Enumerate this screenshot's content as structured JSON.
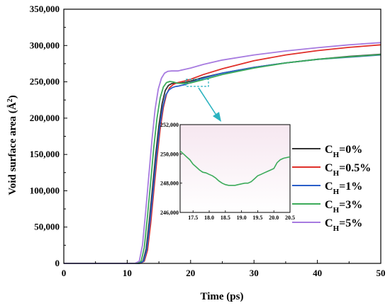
{
  "chart_data": {
    "type": "line",
    "xlabel": "Time (ps)",
    "ylabel": "Void surface area (Å",
    "ylabel_sup": "2",
    "ylabel_close": ")",
    "xlim": [
      0,
      50
    ],
    "ylim": [
      0,
      350000
    ],
    "x_ticks": [
      0,
      10,
      20,
      30,
      40,
      50
    ],
    "y_ticks": [
      0,
      50000,
      100000,
      150000,
      200000,
      250000,
      300000,
      350000
    ],
    "x_tick_labels": [
      "0",
      "10",
      "20",
      "30",
      "40",
      "50"
    ],
    "y_tick_labels": [
      "0",
      "50,000",
      "100,000",
      "150,000",
      "200,000",
      "250,000",
      "300,000",
      "350,000"
    ],
    "legend_position": "center-right",
    "series": [
      {
        "legend_main": "C",
        "legend_sub": "H",
        "legend_rest": "=0%",
        "color": "#333333",
        "x": [
          0,
          11.8,
          12.5,
          13,
          13.5,
          14,
          14.5,
          15,
          15.5,
          16,
          16.5,
          17,
          17.5,
          18,
          19,
          20,
          22,
          25,
          30,
          35,
          40,
          45,
          50
        ],
        "y": [
          0,
          0,
          3000,
          20000,
          60000,
          105000,
          150000,
          190000,
          220000,
          238000,
          245000,
          247500,
          248500,
          248000,
          249000,
          251000,
          256000,
          262000,
          270000,
          276000,
          281000,
          285000,
          288000
        ]
      },
      {
        "legend_main": "C",
        "legend_sub": "H",
        "legend_rest": "=0.5%",
        "color": "#e0302a",
        "x": [
          0,
          12.0,
          12.7,
          13.2,
          13.7,
          14.2,
          14.7,
          15.2,
          15.7,
          16.2,
          16.7,
          17.2,
          17.7,
          18,
          19,
          20,
          22,
          25,
          30,
          35,
          40,
          45,
          50
        ],
        "y": [
          0,
          0,
          3000,
          18000,
          55000,
          100000,
          145000,
          185000,
          215000,
          233000,
          242000,
          246000,
          248000,
          249000,
          251000,
          253500,
          260000,
          268000,
          279000,
          287000,
          293000,
          297500,
          301000
        ]
      },
      {
        "legend_main": "C",
        "legend_sub": "H",
        "legend_rest": "=1%",
        "color": "#2a5fc9",
        "x": [
          0,
          11.9,
          12.6,
          13.1,
          13.6,
          14.1,
          14.6,
          15.1,
          15.6,
          16.1,
          16.6,
          17.1,
          17.6,
          18,
          19,
          20,
          22,
          25,
          30,
          35,
          40,
          45,
          50
        ],
        "y": [
          0,
          0,
          3000,
          19000,
          58000,
          102000,
          147000,
          186000,
          215000,
          232000,
          239000,
          242000,
          243500,
          244000,
          246000,
          249000,
          255000,
          262000,
          270000,
          276000,
          281000,
          284000,
          287000
        ]
      },
      {
        "legend_main": "C",
        "legend_sub": "H",
        "legend_rest": "=3%",
        "color": "#3cab5a",
        "x": [
          0,
          11.5,
          12.2,
          12.7,
          13.2,
          13.7,
          14.2,
          14.7,
          15.2,
          15.7,
          16.2,
          16.7,
          17.2,
          18,
          19,
          20,
          22,
          25,
          30,
          35,
          40,
          45,
          50
        ],
        "y": [
          0,
          0,
          3000,
          22000,
          65000,
          112000,
          160000,
          200000,
          228000,
          243000,
          249000,
          250500,
          250000,
          248000,
          247800,
          248500,
          253000,
          260000,
          269000,
          276000,
          281000,
          284500,
          287500
        ]
      },
      {
        "legend_main": "C",
        "legend_sub": "H",
        "legend_rest": "=5%",
        "color": "#a77be0",
        "x": [
          0,
          11.2,
          11.9,
          12.4,
          12.9,
          13.4,
          13.9,
          14.4,
          14.9,
          15.4,
          15.9,
          16.4,
          17,
          18,
          19,
          20,
          22,
          25,
          30,
          35,
          40,
          45,
          50
        ],
        "y": [
          0,
          0,
          3000,
          25000,
          70000,
          120000,
          170000,
          212000,
          240000,
          255000,
          262000,
          264500,
          265000,
          265000,
          267000,
          269000,
          274000,
          280000,
          287000,
          292500,
          297000,
          301000,
          304000
        ]
      }
    ],
    "inset": {
      "xlim": [
        17.1,
        20.5
      ],
      "ylim": [
        246000,
        252000
      ],
      "x_ticks": [
        17.5,
        18.0,
        18.5,
        19.0,
        19.5,
        20.0,
        20.5
      ],
      "x_tick_labels": [
        "17.5",
        "18.0",
        "18.5",
        "19.0",
        "19.5",
        "20.0",
        "20.5"
      ],
      "y_ticks": [
        246000,
        248000,
        250000,
        252000
      ],
      "y_tick_labels": [
        "246,000",
        "248,000",
        "250,000",
        "252,000"
      ],
      "series_color": "#3cab5a",
      "x": [
        17.1,
        17.2,
        17.3,
        17.4,
        17.5,
        17.6,
        17.7,
        17.8,
        17.9,
        18.0,
        18.1,
        18.2,
        18.3,
        18.4,
        18.5,
        18.6,
        18.7,
        18.8,
        18.9,
        19.0,
        19.1,
        19.2,
        19.3,
        19.4,
        19.5,
        19.6,
        19.7,
        19.8,
        19.9,
        20.0,
        20.1,
        20.2,
        20.3,
        20.4,
        20.5
      ],
      "y": [
        250200,
        250000,
        249800,
        249600,
        249300,
        249100,
        248900,
        248750,
        248700,
        248600,
        248500,
        248350,
        248150,
        248000,
        247900,
        247850,
        247850,
        247850,
        247900,
        247950,
        248000,
        248000,
        248100,
        248300,
        248500,
        248600,
        248700,
        248800,
        248900,
        249000,
        249400,
        249600,
        249700,
        249750,
        249800
      ]
    }
  }
}
